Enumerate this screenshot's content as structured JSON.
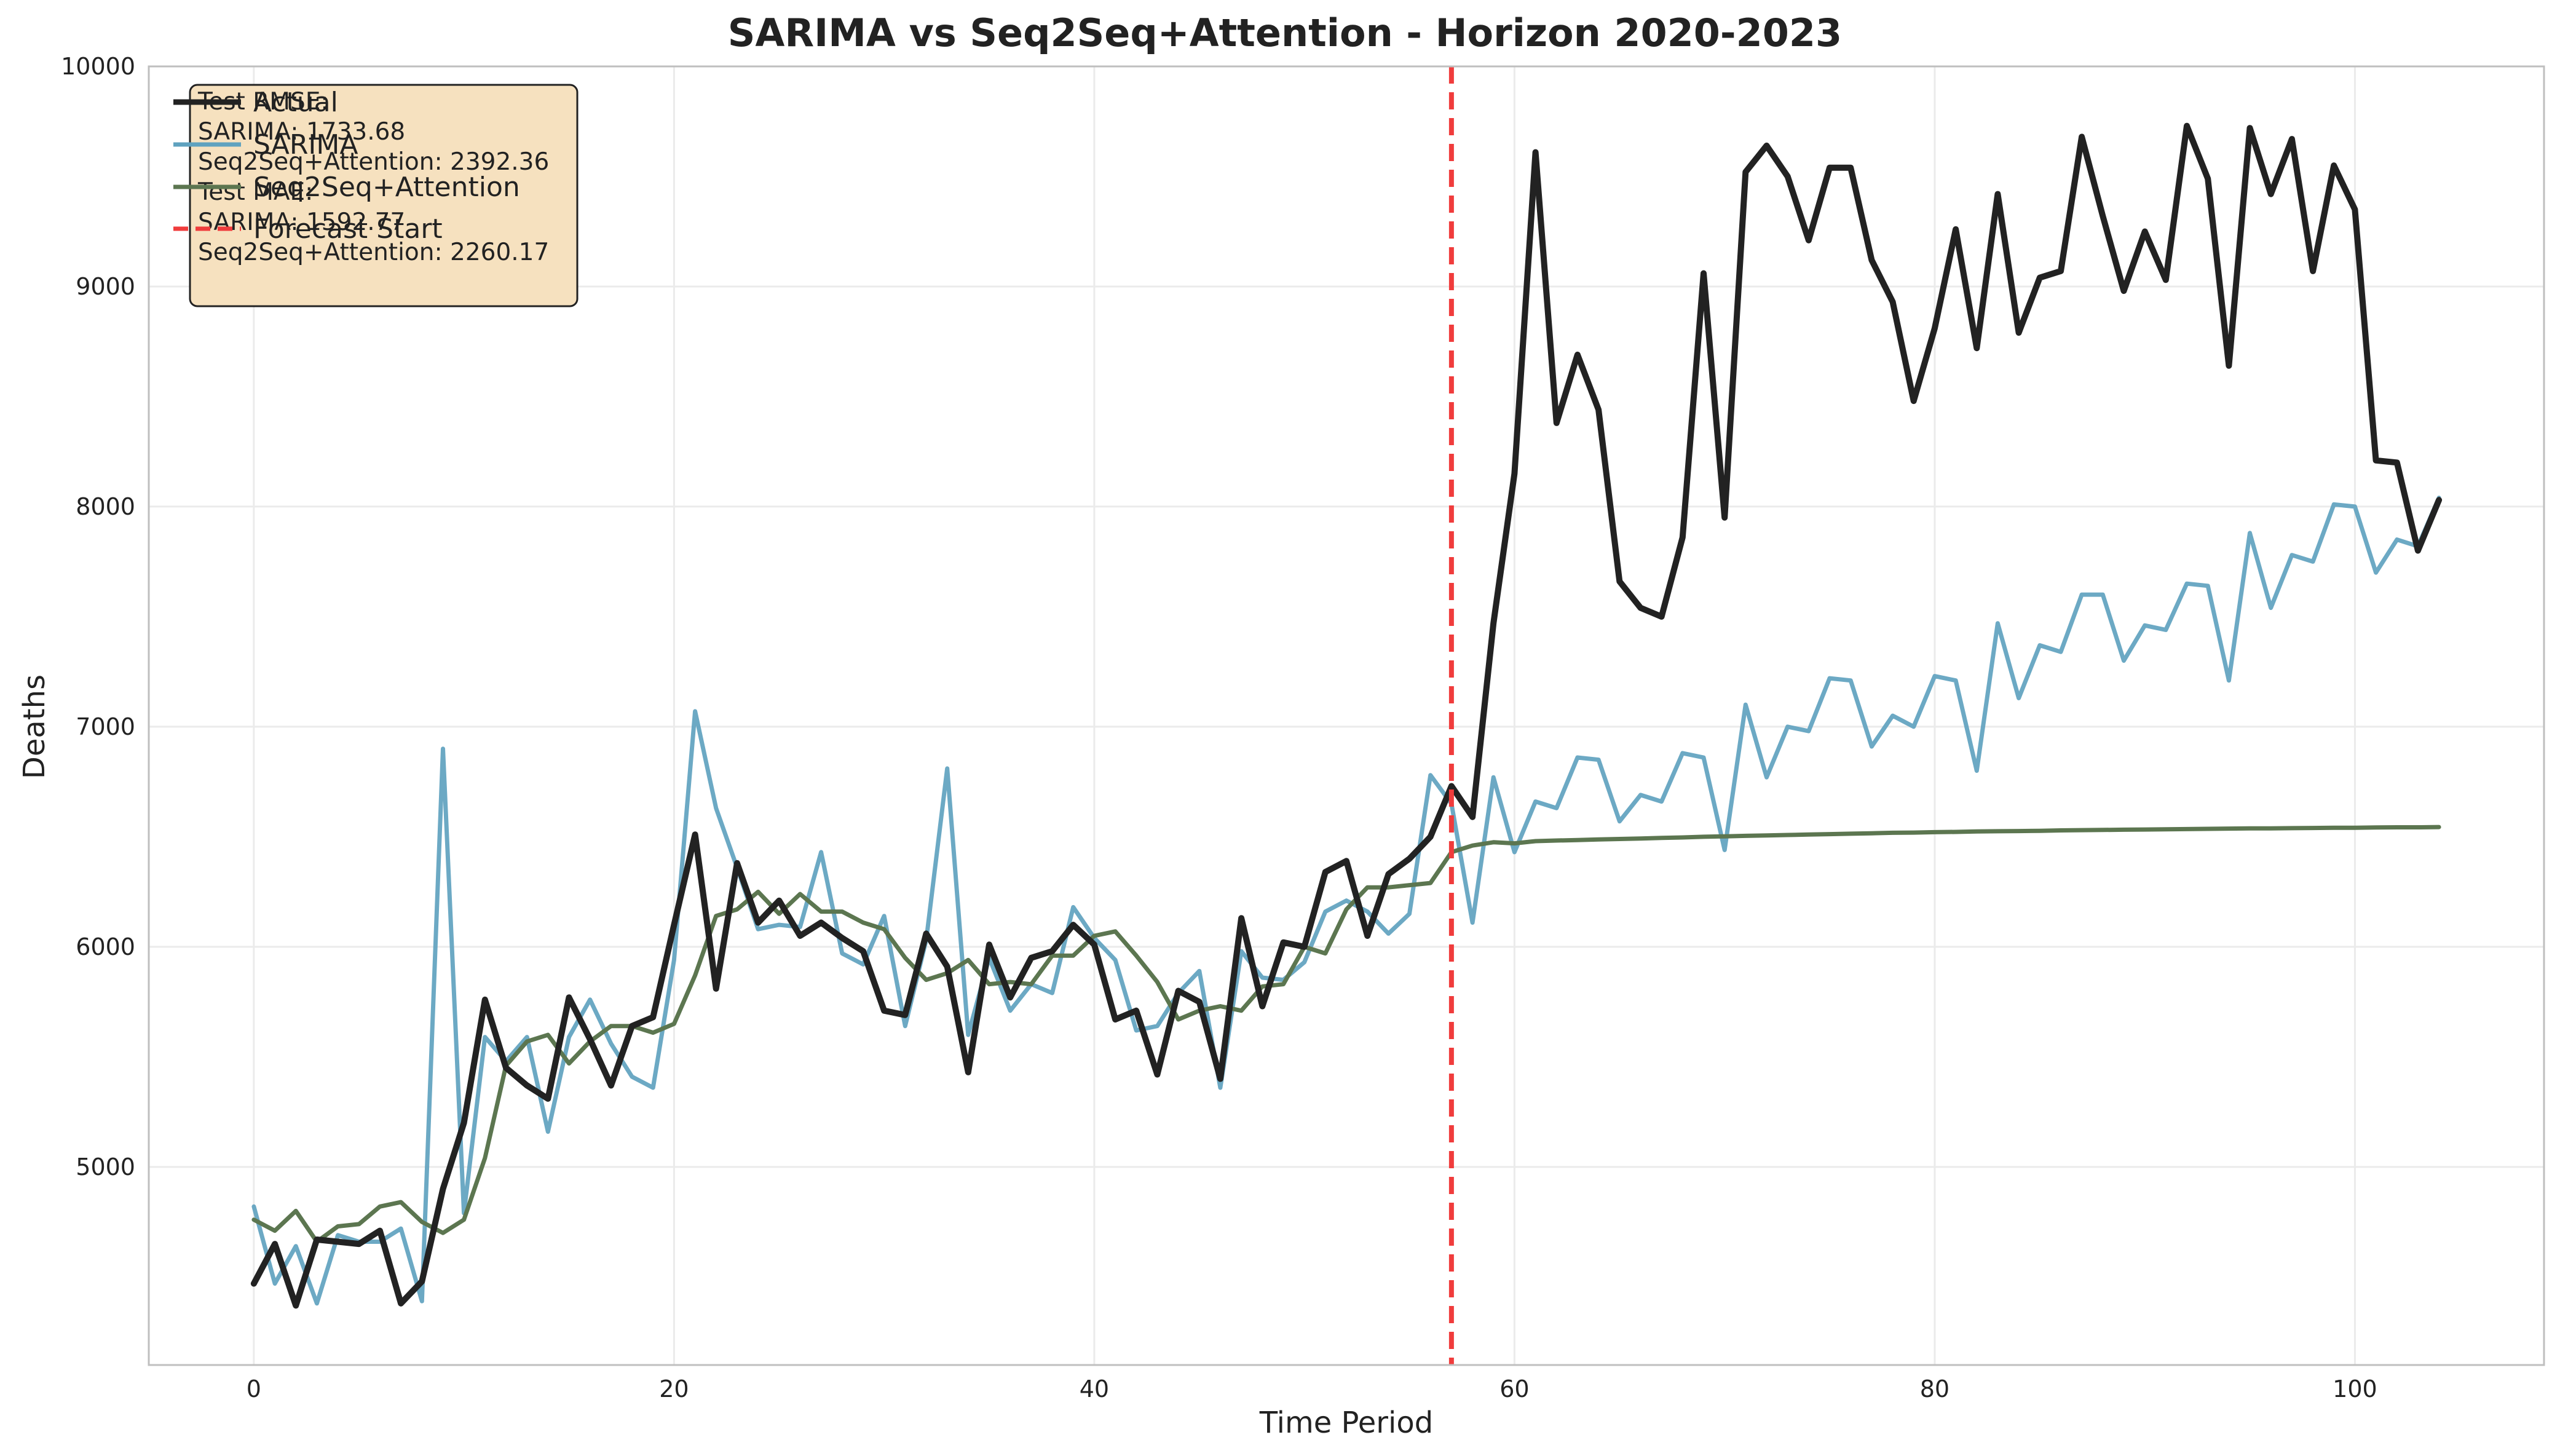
{
  "chart_data": {
    "type": "line",
    "title": "SARIMA vs Seq2Seq+Attention - Horizon 2020-2023",
    "xlabel": "Time Period",
    "ylabel": "Deaths",
    "xlim": [
      -5,
      109
    ],
    "ylim": [
      4100,
      10000
    ],
    "xticks": [
      0,
      20,
      40,
      60,
      80,
      100
    ],
    "yticks": [
      5000,
      6000,
      7000,
      8000,
      9000,
      10000
    ],
    "grid": true,
    "legend": {
      "placement": "top-left",
      "entries": [
        "Actual",
        "SARIMA",
        "Seq2Seq+Attention",
        "Forecast Start"
      ]
    },
    "forecast_start": {
      "label": "Forecast Start",
      "x": 57,
      "color": "#f03c3c"
    },
    "metrics_box": {
      "lines": [
        "Test RMSE:",
        "SARIMA: 1733.68",
        "Seq2Seq+Attention: 2392.36",
        "Test MAE:",
        "SARIMA: 1592.77",
        "Seq2Seq+Attention: 2260.17"
      ]
    },
    "series": [
      {
        "name": "Actual",
        "color": "#222222",
        "values": [
          4470,
          4650,
          4370,
          4670,
          4660,
          4650,
          4710,
          4380,
          4480,
          4900,
          5200,
          5760,
          5450,
          5370,
          5310,
          5770,
          5580,
          5370,
          5640,
          5680,
          6100,
          6510,
          5810,
          6380,
          6110,
          6210,
          6050,
          6110,
          6040,
          5980,
          5710,
          5690,
          6060,
          5910,
          5430,
          6010,
          5770,
          5950,
          5980,
          6100,
          6010,
          5670,
          5710,
          5420,
          5800,
          5750,
          5400,
          6130,
          5730,
          6020,
          6000,
          6340,
          6390,
          6050,
          6330,
          6400,
          6500,
          6730,
          6590,
          7470,
          8150,
          9610,
          8380,
          8690,
          8440,
          7660,
          7540,
          7500,
          7860,
          9060,
          7950,
          9520,
          9640,
          9500,
          9210,
          9540,
          9540,
          9120,
          8930,
          8480,
          8810,
          9260,
          8720,
          9420,
          8790,
          9040,
          9070,
          9680,
          9320,
          8980,
          9250,
          9030,
          9730,
          9490,
          8640,
          9720,
          9420,
          9670,
          9070,
          9550,
          9350,
          8210,
          8200,
          7800,
          8030
        ]
      },
      {
        "name": "SARIMA",
        "color": "#5fa2bf",
        "values": [
          4820,
          4470,
          4640,
          4380,
          4690,
          4660,
          4660,
          4720,
          4390,
          6900,
          4790,
          5590,
          5480,
          5590,
          5160,
          5590,
          5760,
          5560,
          5410,
          5360,
          5940,
          7070,
          6630,
          6360,
          6080,
          6100,
          6090,
          6430,
          5970,
          5920,
          6140,
          5640,
          6030,
          6810,
          5600,
          5950,
          5710,
          5830,
          5790,
          6180,
          6040,
          5940,
          5620,
          5640,
          5790,
          5890,
          5360,
          5980,
          5860,
          5850,
          5930,
          6160,
          6210,
          6160,
          6060,
          6150,
          6780,
          6650,
          6110,
          6770,
          6430,
          6660,
          6630,
          6860,
          6850,
          6570,
          6690,
          6660,
          6880,
          6860,
          6440,
          7100,
          6770,
          7000,
          6980,
          7220,
          7210,
          6910,
          7050,
          7000,
          7230,
          7210,
          6800,
          7470,
          7130,
          7370,
          7340,
          7600,
          7600,
          7300,
          7460,
          7440,
          7650,
          7640,
          7210,
          7880,
          7540,
          7780,
          7750,
          8010,
          8000,
          7700,
          7850,
          7820,
          8040
        ]
      },
      {
        "name": "Seq2Seq+Attention",
        "color": "#5c7650",
        "values": [
          4760,
          4710,
          4800,
          4660,
          4730,
          4740,
          4820,
          4840,
          4750,
          4700,
          4760,
          5040,
          5460,
          5570,
          5600,
          5470,
          5570,
          5640,
          5640,
          5610,
          5650,
          5870,
          6140,
          6170,
          6250,
          6150,
          6240,
          6160,
          6160,
          6110,
          6080,
          5950,
          5850,
          5880,
          5940,
          5830,
          5840,
          5830,
          5960,
          5960,
          6050,
          6070,
          5960,
          5840,
          5670,
          5710,
          5730,
          5710,
          5820,
          5830,
          6000,
          5970,
          6170,
          6270,
          6270,
          6280,
          6290,
          6430,
          6460,
          6475,
          6470,
          6480,
          6483,
          6485,
          6488,
          6490,
          6492,
          6495,
          6497,
          6500,
          6502,
          6504,
          6506,
          6508,
          6510,
          6512,
          6514,
          6516,
          6518,
          6519,
          6521,
          6522,
          6524,
          6525,
          6526,
          6527,
          6529,
          6530,
          6531,
          6532,
          6533,
          6534,
          6535,
          6536,
          6537,
          6538,
          6538,
          6539,
          6540,
          6541,
          6541,
          6542,
          6543,
          6543,
          6544
        ]
      }
    ]
  }
}
